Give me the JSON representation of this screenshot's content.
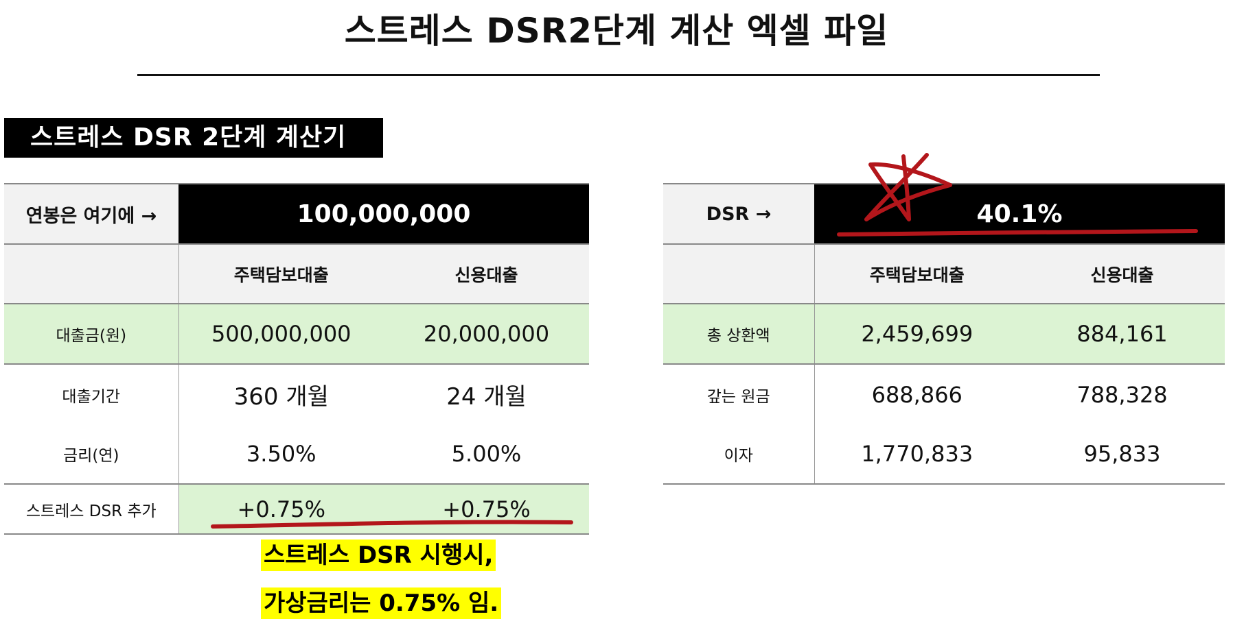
{
  "page": {
    "title": "스트레스 DSR2단계 계산 엑셀 파일"
  },
  "calculator": {
    "title": "스트레스 DSR 2단계 계산기",
    "salary_label": "연봉은 여기에 →",
    "salary_value": "100,000,000",
    "columns": [
      "주택담보대출",
      "신용대출"
    ],
    "rows": [
      {
        "label": "대출금(원)",
        "values": [
          "500,000,000",
          "20,000,000"
        ]
      },
      {
        "label": "대출기간",
        "values": [
          "360 개월",
          "24 개월"
        ]
      },
      {
        "label": "금리(연)",
        "values": [
          "3.50%",
          "5.00%"
        ]
      },
      {
        "label": "스트레스 DSR 추가",
        "values": [
          "+0.75%",
          "+0.75%"
        ]
      }
    ]
  },
  "result": {
    "dsr_label": "DSR →",
    "dsr_value": "40.1%",
    "columns": [
      "주택담보대출",
      "신용대출"
    ],
    "rows": [
      {
        "label": "총 상환액",
        "values": [
          "2,459,699",
          "884,161"
        ]
      },
      {
        "label": "갚는 원금",
        "values": [
          "688,866",
          "788,328"
        ]
      },
      {
        "label": "이자",
        "values": [
          "1,770,833",
          "95,833"
        ]
      }
    ]
  },
  "note": {
    "line1": "스트레스 DSR 시행시,",
    "line2": "가상금리는 0.75% 임."
  },
  "colors": {
    "accent_black": "#000000",
    "green_row": "#dcf3d3",
    "gray_header": "#f2f2f2",
    "highlight_yellow": "#ffff00",
    "annotation_red": "#b3161b"
  }
}
